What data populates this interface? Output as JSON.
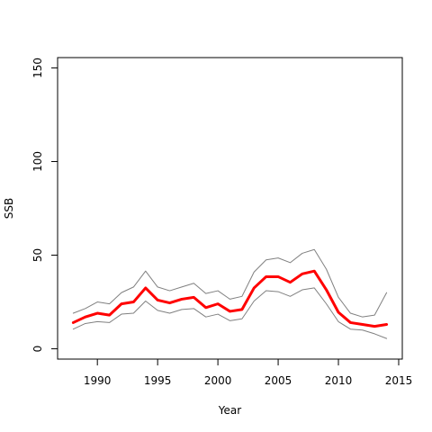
{
  "chart_data": {
    "type": "line",
    "title": "",
    "xlabel": "Year",
    "ylabel": "SSB",
    "xlim": [
      1986.7,
      2015.3
    ],
    "ylim": [
      -5.5,
      155.5
    ],
    "x_ticks": [
      1990,
      1995,
      2000,
      2005,
      2010,
      2015
    ],
    "x_tick_labels": [
      "1990",
      "1995",
      "2000",
      "2005",
      "2010",
      "2015"
    ],
    "y_ticks": [
      0,
      50,
      100,
      150
    ],
    "y_tick_labels": [
      "0",
      "50",
      "100",
      "150"
    ],
    "grid": false,
    "legend": "none",
    "x": [
      1988,
      1989,
      1990,
      1991,
      1992,
      1993,
      1994,
      1995,
      1996,
      1997,
      1998,
      1999,
      2000,
      2001,
      2002,
      2003,
      2004,
      2005,
      2006,
      2007,
      2008,
      2009,
      2010,
      2011,
      2012,
      2013,
      2014
    ],
    "series": [
      {
        "color": "#ff0000",
        "style": "thick",
        "values": [
          14,
          17,
          19,
          18,
          24,
          25,
          32.5,
          26,
          24.5,
          26.5,
          27.5,
          22,
          24,
          20,
          21,
          32.5,
          38.5,
          38.5,
          35.5,
          40,
          41.5,
          31.5,
          19.5,
          14,
          13,
          12,
          13
        ]
      },
      {
        "color": "#808080",
        "style": "thin",
        "values": [
          19,
          21.5,
          25,
          24,
          30,
          33,
          41.5,
          33,
          31,
          33,
          35,
          29.5,
          31,
          26.5,
          28,
          41,
          47.5,
          48.5,
          46,
          51,
          53,
          42.5,
          27.5,
          19,
          17,
          18,
          30
        ]
      },
      {
        "color": "#808080",
        "style": "thin",
        "values": [
          10.5,
          13.5,
          14.5,
          14,
          18.5,
          19,
          25.5,
          20.5,
          19,
          21,
          21.5,
          17,
          18.5,
          15,
          16,
          25.5,
          31,
          30.5,
          28,
          31.5,
          32.5,
          24,
          14.5,
          10.5,
          10,
          8,
          5.5
        ]
      }
    ]
  }
}
